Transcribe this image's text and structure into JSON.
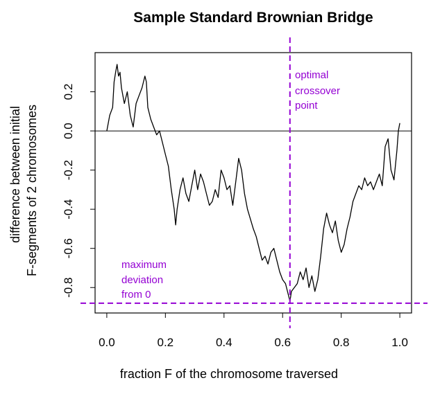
{
  "chart_data": {
    "type": "line",
    "title": "Sample Standard Brownian Bridge",
    "xlabel": "fraction F of the chromosome traversed",
    "ylabel_line1": "difference between initial",
    "ylabel_line2": "F-segments of 2 chromosomes",
    "xlim": [
      -0.04,
      1.04
    ],
    "ylim": [
      -0.93,
      0.4
    ],
    "xticks": [
      0.0,
      0.2,
      0.4,
      0.6,
      0.8,
      1.0
    ],
    "xtick_labels": [
      "0.0",
      "0.2",
      "0.4",
      "0.6",
      "0.8",
      "1.0"
    ],
    "yticks": [
      -0.8,
      -0.6,
      -0.4,
      -0.2,
      0.0,
      0.2
    ],
    "ytick_labels": [
      "-0.8",
      "-0.6",
      "-0.4",
      "-0.2",
      "0.0",
      "0.2"
    ],
    "zero_line": 0.0,
    "series": [
      {
        "name": "Brownian bridge",
        "color": "#000000",
        "x": [
          0.0,
          0.01,
          0.02,
          0.025,
          0.03,
          0.035,
          0.04,
          0.045,
          0.05,
          0.06,
          0.07,
          0.08,
          0.09,
          0.1,
          0.11,
          0.12,
          0.13,
          0.135,
          0.14,
          0.15,
          0.16,
          0.17,
          0.18,
          0.19,
          0.2,
          0.21,
          0.22,
          0.23,
          0.235,
          0.24,
          0.25,
          0.26,
          0.27,
          0.28,
          0.29,
          0.3,
          0.31,
          0.32,
          0.33,
          0.34,
          0.35,
          0.36,
          0.37,
          0.38,
          0.39,
          0.4,
          0.41,
          0.42,
          0.43,
          0.44,
          0.45,
          0.46,
          0.47,
          0.48,
          0.49,
          0.5,
          0.51,
          0.52,
          0.53,
          0.54,
          0.55,
          0.56,
          0.57,
          0.58,
          0.59,
          0.6,
          0.61,
          0.62,
          0.625,
          0.63,
          0.64,
          0.65,
          0.66,
          0.67,
          0.68,
          0.69,
          0.7,
          0.71,
          0.72,
          0.73,
          0.74,
          0.75,
          0.76,
          0.77,
          0.78,
          0.79,
          0.8,
          0.81,
          0.82,
          0.83,
          0.84,
          0.85,
          0.86,
          0.87,
          0.88,
          0.89,
          0.9,
          0.91,
          0.92,
          0.93,
          0.94,
          0.95,
          0.96,
          0.97,
          0.98,
          0.99,
          0.995,
          1.0
        ],
        "values": [
          0.0,
          0.08,
          0.12,
          0.25,
          0.3,
          0.34,
          0.28,
          0.3,
          0.22,
          0.14,
          0.2,
          0.08,
          0.02,
          0.14,
          0.18,
          0.22,
          0.28,
          0.25,
          0.12,
          0.06,
          0.02,
          -0.02,
          0.0,
          -0.06,
          -0.12,
          -0.18,
          -0.3,
          -0.4,
          -0.48,
          -0.4,
          -0.3,
          -0.24,
          -0.32,
          -0.36,
          -0.28,
          -0.2,
          -0.3,
          -0.22,
          -0.26,
          -0.32,
          -0.38,
          -0.36,
          -0.3,
          -0.34,
          -0.2,
          -0.24,
          -0.3,
          -0.28,
          -0.38,
          -0.26,
          -0.14,
          -0.2,
          -0.32,
          -0.4,
          -0.45,
          -0.5,
          -0.54,
          -0.6,
          -0.66,
          -0.64,
          -0.68,
          -0.62,
          -0.6,
          -0.66,
          -0.72,
          -0.76,
          -0.78,
          -0.84,
          -0.87,
          -0.82,
          -0.8,
          -0.78,
          -0.72,
          -0.76,
          -0.7,
          -0.8,
          -0.74,
          -0.82,
          -0.76,
          -0.64,
          -0.5,
          -0.42,
          -0.48,
          -0.52,
          -0.46,
          -0.56,
          -0.62,
          -0.58,
          -0.5,
          -0.44,
          -0.36,
          -0.32,
          -0.28,
          -0.3,
          -0.24,
          -0.28,
          -0.26,
          -0.3,
          -0.26,
          -0.22,
          -0.28,
          -0.08,
          -0.04,
          -0.2,
          -0.25,
          -0.1,
          0.0,
          0.04
        ]
      }
    ],
    "annotations": {
      "vline_x": 0.625,
      "hline_y": -0.88,
      "line_color": "#9400d3",
      "vline_text": [
        "optimal",
        "crossover",
        "point"
      ],
      "hline_text": [
        "maximum",
        "deviation",
        "from 0"
      ]
    }
  }
}
